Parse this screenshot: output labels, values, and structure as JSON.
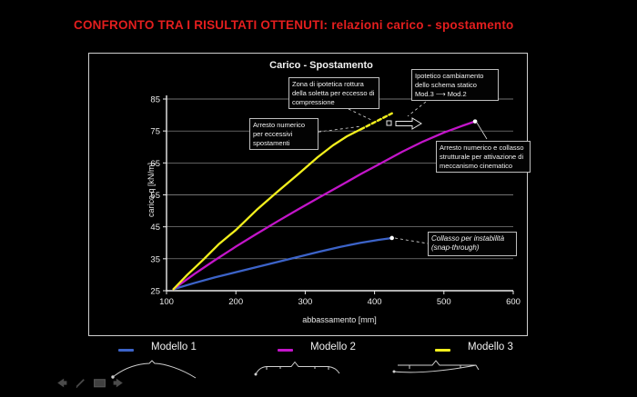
{
  "slide": {
    "title_main": "CONFRONTO TRA I RISULTATI OTTENUTI:",
    "title_sub": "relazioni carico - spostamento",
    "title_color": "#e31e1e"
  },
  "chart_data": {
    "type": "line",
    "title": "Carico - Spostamento",
    "xlabel": "abbassamento [mm]",
    "ylabel": "carico q [kN/m]",
    "xlim": [
      100,
      600
    ],
    "ylim": [
      25,
      85
    ],
    "xticks": [
      100,
      200,
      300,
      400,
      500,
      600
    ],
    "yticks": [
      25,
      35,
      45,
      55,
      65,
      75,
      85
    ],
    "grid": "horizontal",
    "legend_position": "bottom",
    "series": [
      {
        "name": "Modello 1",
        "color": "#3c63c8",
        "points": [
          [
            110,
            25.5
          ],
          [
            140,
            27.4
          ],
          [
            170,
            29.2
          ],
          [
            200,
            30.8
          ],
          [
            230,
            32.4
          ],
          [
            260,
            34.0
          ],
          [
            290,
            35.6
          ],
          [
            320,
            37.2
          ],
          [
            350,
            38.7
          ],
          [
            380,
            40.0
          ],
          [
            405,
            40.9
          ],
          [
            425,
            41.5
          ]
        ],
        "end_marker": [
          425,
          41.5
        ]
      },
      {
        "name": "Modello 2",
        "color": "#c315c9",
        "points": [
          [
            110,
            25.5
          ],
          [
            140,
            30.2
          ],
          [
            170,
            34.6
          ],
          [
            200,
            38.8
          ],
          [
            230,
            42.8
          ],
          [
            260,
            46.7
          ],
          [
            290,
            50.5
          ],
          [
            320,
            54.2
          ],
          [
            350,
            57.8
          ],
          [
            380,
            61.5
          ],
          [
            410,
            65.0
          ],
          [
            440,
            68.5
          ],
          [
            470,
            71.7
          ],
          [
            500,
            74.5
          ],
          [
            525,
            76.5
          ],
          [
            545,
            78.0
          ]
        ],
        "end_marker": [
          545,
          78.0
        ]
      },
      {
        "name": "Modello 3",
        "color": "#f2ef1d",
        "points": [
          [
            110,
            25.5
          ],
          [
            130,
            30.0
          ],
          [
            152,
            34.5
          ],
          [
            175,
            39.5
          ],
          [
            200,
            44.0
          ],
          [
            230,
            50.3
          ],
          [
            260,
            56.0
          ],
          [
            290,
            61.5
          ],
          [
            318,
            66.8
          ],
          [
            340,
            70.5
          ],
          [
            360,
            73.3
          ],
          [
            380,
            75.5
          ]
        ],
        "dashed_tail": [
          [
            380,
            75.5
          ],
          [
            425,
            80.5
          ]
        ]
      }
    ]
  },
  "annotations": [
    {
      "text": "Zona di ipotetica rottura della soletta per eccesso di compressione"
    },
    {
      "text": "Ipotetico cambiamento dello schema statico Mod.3 ⟶ Mod.2"
    },
    {
      "text": "Arresto numerico per eccessivi spostamenti"
    },
    {
      "text": "Arresto numerico e collasso strutturale per attivazione di meccanismo cinematico"
    },
    {
      "text": "Collasso per instabilità (snap-through)"
    }
  ],
  "legend": {
    "items": [
      {
        "label": "Modello 1",
        "color": "#3c63c8"
      },
      {
        "label": "Modello 2",
        "color": "#c315c9"
      },
      {
        "label": "Modello 3",
        "color": "#f2ef1d"
      }
    ]
  },
  "nav": {
    "icons": [
      "previous-arrow-icon",
      "pen-icon",
      "slide-menu-icon",
      "next-arrow-icon"
    ]
  }
}
